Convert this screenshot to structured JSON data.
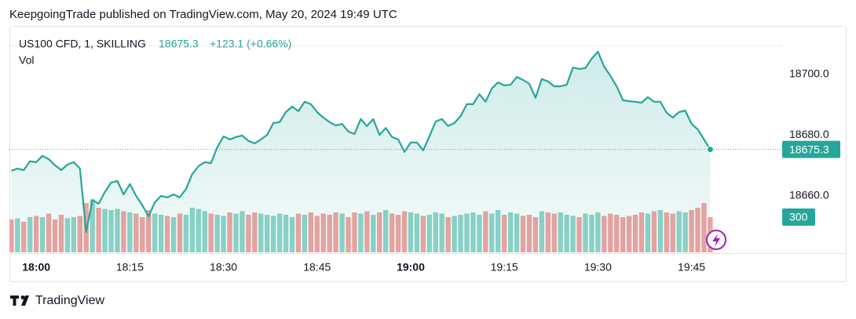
{
  "header": "KeepgoingTrade published on TradingView.com, May 20, 2024 19:49 UTC",
  "footer": "TradingView",
  "chart_data": {
    "type": "area",
    "change": "+123.1 (+0.66%)",
    "x": [
      1076,
      1077,
      1078,
      1079,
      1080,
      1081,
      1082,
      1083,
      1084,
      1085,
      1086,
      1087,
      1088,
      1089,
      1090,
      1091,
      1092,
      1093,
      1094,
      1095,
      1096,
      1097,
      1098,
      1099,
      1100,
      1101,
      1102,
      1103,
      1104,
      1105,
      1106,
      1107,
      1108,
      1109,
      1110,
      1111,
      1112,
      1113,
      1114,
      1115,
      1116,
      1117,
      1118,
      1119,
      1120,
      1121,
      1122,
      1123,
      1124,
      1125,
      1126,
      1127,
      1128,
      1129,
      1130,
      1131,
      1132,
      1133,
      1134,
      1135,
      1136,
      1137,
      1138,
      1139,
      1140,
      1141,
      1142,
      1143,
      1144,
      1145,
      1146,
      1147,
      1148,
      1149,
      1150,
      1151,
      1152,
      1153,
      1154,
      1155,
      1156,
      1157,
      1158,
      1159,
      1160,
      1161,
      1162,
      1163,
      1164,
      1165,
      1166,
      1167,
      1168,
      1169,
      1170,
      1171,
      1172,
      1173,
      1174,
      1175,
      1176,
      1177,
      1178,
      1179,
      1180,
      1181,
      1182,
      1183,
      1184,
      1185,
      1186,
      1187,
      1188
    ],
    "series": [
      {
        "name": "US100 CFD, 1, SKILLING",
        "color": "#26a69a",
        "values": [
          18668.3,
          18669.0,
          18668.5,
          18671.4,
          18671.1,
          18673.2,
          18672.1,
          18670.1,
          18668.5,
          18670.3,
          18671.1,
          18669.0,
          18648.1,
          18658.7,
          18657.4,
          18661.3,
          18664.4,
          18664.9,
          18660.5,
          18663.9,
          18660.0,
          18656.9,
          18653.3,
          18657.9,
          18660.0,
          18659.5,
          18660.5,
          18659.5,
          18662.3,
          18667.2,
          18669.8,
          18671.1,
          18670.8,
          18676.0,
          18679.6,
          18678.6,
          18679.4,
          18679.9,
          18678.1,
          18677.3,
          18678.6,
          18680.1,
          18684.0,
          18684.3,
          18687.6,
          18689.4,
          18687.9,
          18691.0,
          18690.2,
          18687.6,
          18685.8,
          18684.3,
          18683.2,
          18683.7,
          18681.2,
          18680.4,
          18685.3,
          18683.0,
          18685.3,
          18680.1,
          18682.4,
          18679.4,
          18678.6,
          18674.5,
          18677.6,
          18677.6,
          18675.0,
          18679.6,
          18684.5,
          18685.3,
          18683.0,
          18684.0,
          18686.3,
          18690.2,
          18690.2,
          18693.5,
          18691.0,
          18695.4,
          18697.4,
          18696.4,
          18696.6,
          18699.2,
          18698.2,
          18696.9,
          18692.3,
          18698.5,
          18697.7,
          18696.1,
          18696.1,
          18696.6,
          18702.3,
          18701.8,
          18702.1,
          18705.2,
          18707.5,
          18702.6,
          18699.5,
          18696.1,
          18691.5,
          18691.2,
          18691.0,
          18690.7,
          18692.5,
          18691.0,
          18691.0,
          18687.4,
          18685.8,
          18687.6,
          18688.1,
          18683.7,
          18681.9,
          18678.6,
          18675.3
        ]
      }
    ],
    "volume": {
      "name": "Vol",
      "up_color": "#8fd3c8",
      "down_color": "#f0a3a0",
      "values": [
        280,
        290,
        260,
        300,
        310,
        300,
        330,
        280,
        320,
        290,
        300,
        310,
        420,
        450,
        380,
        370,
        360,
        370,
        350,
        340,
        330,
        300,
        360,
        330,
        320,
        310,
        300,
        330,
        320,
        380,
        370,
        350,
        330,
        320,
        310,
        340,
        330,
        350,
        320,
        340,
        330,
        320,
        310,
        330,
        320,
        300,
        330,
        320,
        340,
        310,
        330,
        320,
        340,
        330,
        300,
        340,
        330,
        350,
        320,
        340,
        360,
        330,
        320,
        350,
        340,
        330,
        310,
        320,
        340,
        330,
        300,
        310,
        320,
        330,
        340,
        320,
        350,
        330,
        360,
        320,
        340,
        330,
        310,
        320,
        300,
        350,
        340,
        330,
        340,
        320,
        310,
        300,
        330,
        320,
        340,
        310,
        330,
        320,
        300,
        310,
        320,
        340,
        330,
        350,
        360,
        340,
        330,
        350,
        340,
        360,
        380,
        420,
        300
      ]
    },
    "xlim": [
      1075.7,
      1199.4
    ],
    "xticks": [
      {
        "value": 1080,
        "label": "18:00"
      },
      {
        "value": 1095,
        "label": "18:15"
      },
      {
        "value": 1110,
        "label": "18:30"
      },
      {
        "value": 1125,
        "label": "18:45"
      },
      {
        "value": 1140,
        "label": "19:00"
      },
      {
        "value": 1155,
        "label": "19:15"
      },
      {
        "value": 1170,
        "label": "19:30"
      },
      {
        "value": 1185,
        "label": "19:45"
      }
    ],
    "ylim": [
      18641.4,
      18716
    ],
    "yticks": [
      {
        "value": 18660,
        "label": "18660.0"
      },
      {
        "value": 18680,
        "label": "18680.0"
      },
      {
        "value": 18700,
        "label": "18700.0"
      }
    ],
    "y2lim": [
      0,
      1927
    ],
    "grid": false
  }
}
